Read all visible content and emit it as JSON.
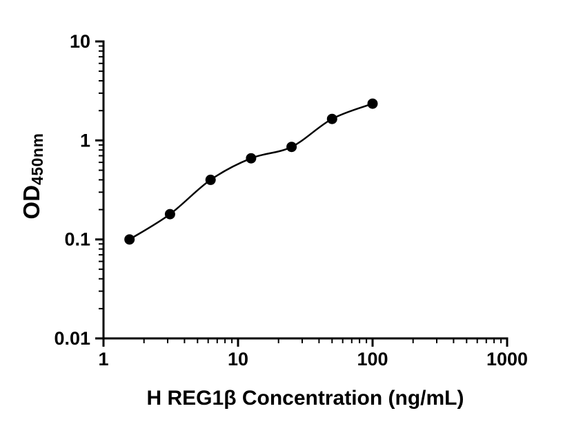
{
  "figure": {
    "background": "#ffffff"
  },
  "chart_data": {
    "type": "scatter",
    "title": "",
    "xlabel": "H REG1β Concentration (ng/mL)",
    "ylabel_main": "OD",
    "ylabel_sub": "450nm",
    "x_scale": "log",
    "y_scale": "log",
    "x_range": [
      1,
      1000
    ],
    "y_range": [
      0.01,
      10
    ],
    "x_ticks": [
      {
        "value": 1,
        "label": "1"
      },
      {
        "value": 10,
        "label": "10"
      },
      {
        "value": 100,
        "label": "100"
      },
      {
        "value": 1000,
        "label": "1000"
      }
    ],
    "y_ticks": [
      {
        "value": 10,
        "label": "10"
      },
      {
        "value": 1,
        "label": "1"
      },
      {
        "value": 0.1,
        "label": "0.1"
      },
      {
        "value": 0.01,
        "label": "0.01"
      }
    ],
    "minor_ticks": true,
    "grid": false,
    "legend": false,
    "axis_color": "#000000",
    "series": [
      {
        "marker": "circle",
        "color": "#000000",
        "curve": "smooth",
        "points": [
          {
            "x": 1.56,
            "y": 0.1
          },
          {
            "x": 3.12,
            "y": 0.18
          },
          {
            "x": 6.25,
            "y": 0.4
          },
          {
            "x": 12.5,
            "y": 0.66
          },
          {
            "x": 25,
            "y": 0.86
          },
          {
            "x": 50,
            "y": 1.65
          },
          {
            "x": 100,
            "y": 2.35
          }
        ]
      }
    ]
  }
}
